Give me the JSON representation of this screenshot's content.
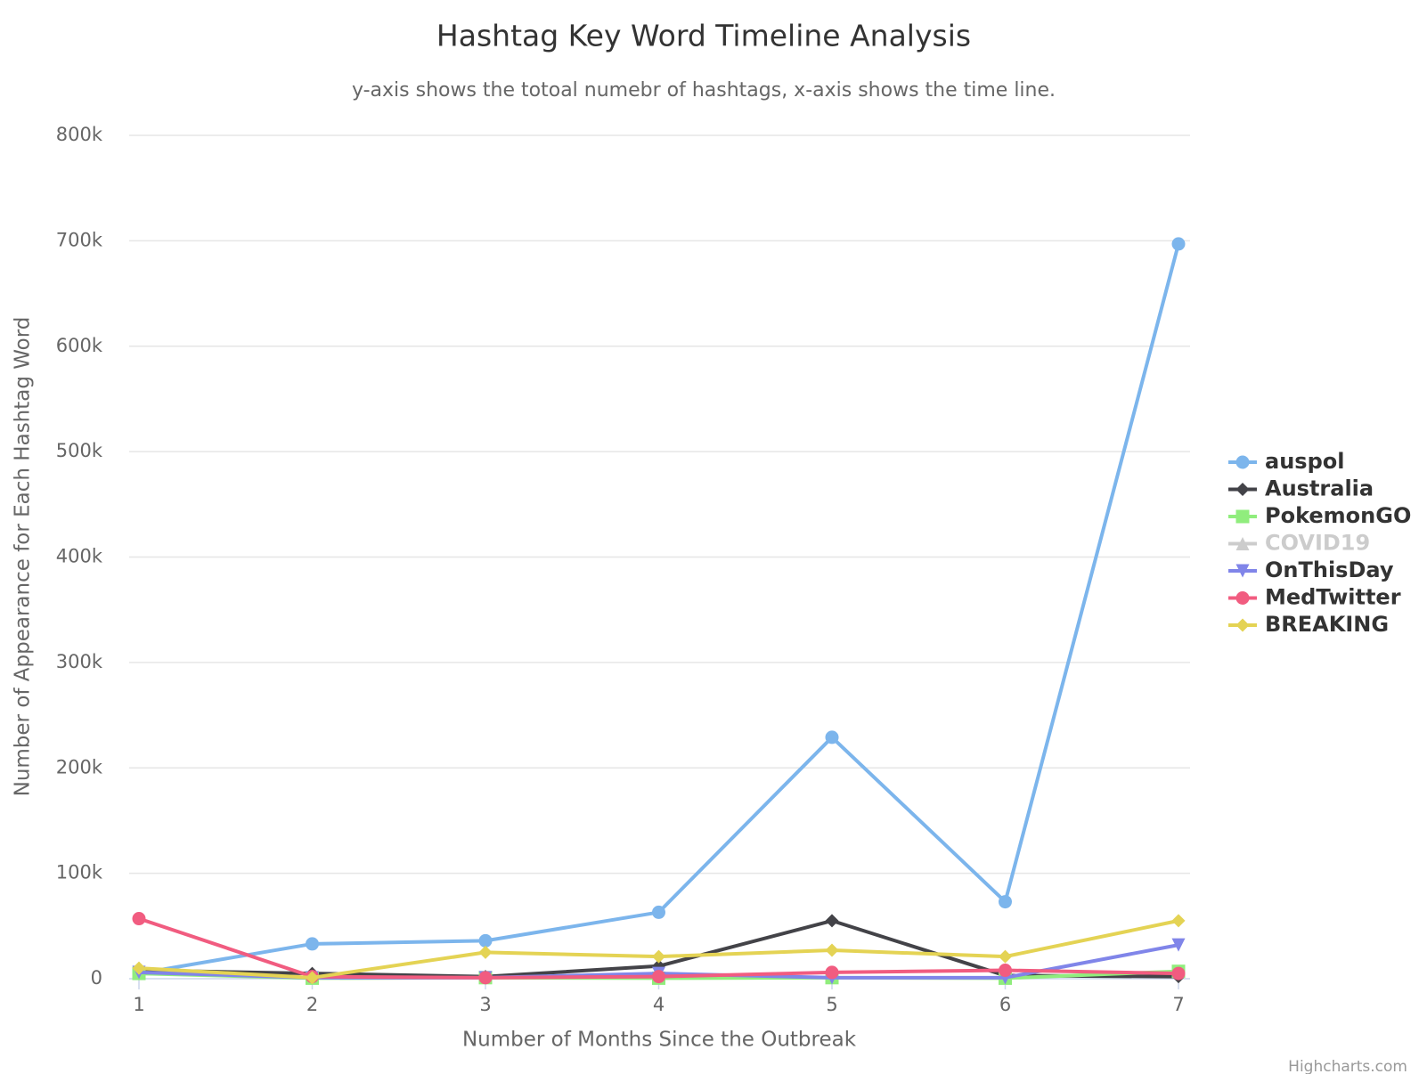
{
  "chart_data": {
    "type": "line",
    "title": "Hashtag Key Word Timeline Analysis",
    "subtitle": "y-axis shows the totoal numebr of hashtags, x-axis shows the time line.",
    "x_label": "Number of Months Since the Outbreak",
    "y_label": "Number of Appearance for Each Hashtag Word",
    "credits": "Highcharts.com",
    "x": [
      1,
      2,
      3,
      4,
      5,
      6,
      7
    ],
    "xlim": [
      1,
      7
    ],
    "xticks": [
      1,
      2,
      3,
      4,
      5,
      6,
      7
    ],
    "ylim": [
      0,
      800000
    ],
    "yticks": [
      0,
      {
        "value": 100000,
        "label": "100k"
      },
      {
        "value": 200000,
        "label": "200k"
      },
      {
        "value": 300000,
        "label": "300k"
      },
      {
        "value": 400000,
        "label": "400k"
      },
      {
        "value": 500000,
        "label": "500k"
      },
      {
        "value": 600000,
        "label": "600k"
      },
      {
        "value": 700000,
        "label": "700k"
      },
      {
        "value": 800000,
        "label": "800k"
      }
    ],
    "grid": true,
    "legend": "right",
    "series": [
      {
        "name": "auspol",
        "color": "#7cb5ec",
        "marker": "circle",
        "visible": true,
        "values": [
          5000,
          33000,
          36000,
          63000,
          229000,
          73000,
          697000
        ]
      },
      {
        "name": "Australia",
        "color": "#434348",
        "marker": "diamond",
        "visible": true,
        "values": [
          8000,
          5000,
          2000,
          12000,
          55000,
          3000,
          2000
        ]
      },
      {
        "name": "PokemonGO",
        "color": "#90ed7d",
        "marker": "square",
        "visible": true,
        "values": [
          5000,
          500,
          1000,
          500,
          1000,
          500,
          7000
        ]
      },
      {
        "name": "COVID19",
        "color": "#f7a35c",
        "marker": "triangle",
        "visible": false,
        "values": [
          null,
          null,
          null,
          null,
          null,
          null,
          null
        ]
      },
      {
        "name": "OnThisDay",
        "color": "#8085e9",
        "marker": "triangle-down",
        "visible": true,
        "values": [
          6000,
          1000,
          1000,
          5000,
          1000,
          1000,
          32000
        ]
      },
      {
        "name": "MedTwitter",
        "color": "#f15c80",
        "marker": "circle",
        "visible": true,
        "values": [
          57000,
          2000,
          1000,
          2000,
          6000,
          8000,
          5000
        ]
      },
      {
        "name": "BREAKING",
        "color": "#e4d354",
        "marker": "diamond",
        "visible": true,
        "values": [
          10000,
          1000,
          25000,
          21000,
          27000,
          21000,
          55000
        ]
      }
    ]
  }
}
